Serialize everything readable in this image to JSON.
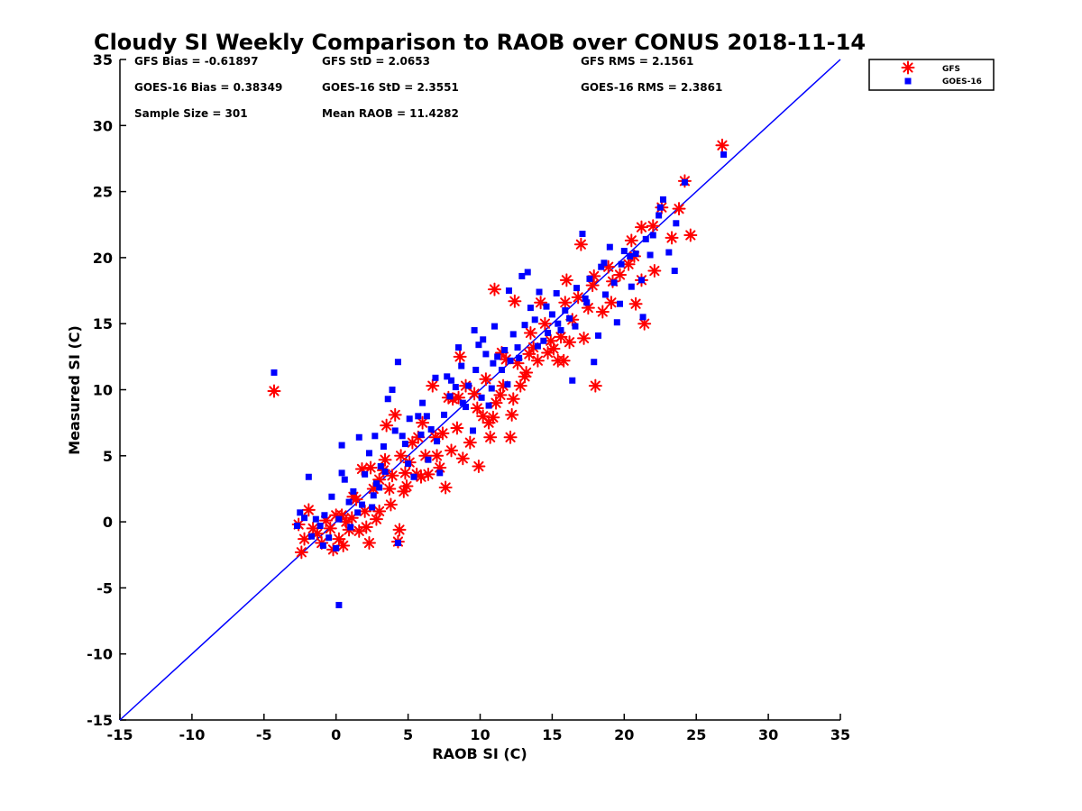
{
  "chart_data": {
    "type": "scatter",
    "title": "Cloudy SI Weekly Comparison to RAOB over CONUS 2018-11-14",
    "xlabel": "RAOB SI (C)",
    "ylabel": "Measured SI (C)",
    "xlim": [
      -15,
      35
    ],
    "ylim": [
      -15,
      35
    ],
    "x_ticks": [
      "-15",
      "-10",
      "-5",
      "0",
      "5",
      "10",
      "15",
      "20",
      "25",
      "30",
      "35"
    ],
    "y_ticks": [
      "-15",
      "-10",
      "-5",
      "0",
      "5",
      "10",
      "15",
      "20",
      "25",
      "30",
      "35"
    ],
    "grid": false,
    "legend_position": "top-right, outside plot",
    "reference_line": {
      "from": [
        -15,
        -15
      ],
      "to": [
        35,
        35
      ],
      "color": "#0000ff"
    },
    "stats": {
      "gfs_bias": "GFS Bias = -0.61897",
      "gfs_std": "GFS StD = 2.0653",
      "gfs_rms": "GFS RMS = 2.1561",
      "goes_bias": "GOES-16 Bias = 0.38349",
      "goes_std": "GOES-16 StD = 2.3551",
      "goes_rms": "GOES-16 RMS = 2.3861",
      "sample_size": "Sample Size = 301",
      "mean_raob": "Mean RAOB = 11.4282"
    },
    "series": [
      {
        "name": "GFS",
        "marker": "asterisk",
        "color": "#ff0000",
        "points": [
          [
            -4.3,
            9.9
          ],
          [
            26.8,
            28.5
          ],
          [
            24.2,
            25.8
          ],
          [
            24.6,
            21.7
          ],
          [
            23.8,
            23.7
          ],
          [
            22.6,
            23.8
          ],
          [
            23.3,
            21.5
          ],
          [
            22.0,
            22.4
          ],
          [
            21.2,
            22.3
          ],
          [
            22.1,
            19.0
          ],
          [
            21.2,
            18.3
          ],
          [
            21.4,
            15.0
          ],
          [
            20.7,
            20.1
          ],
          [
            20.3,
            19.5
          ],
          [
            20.8,
            16.5
          ],
          [
            19.7,
            18.7
          ],
          [
            19.2,
            18.2
          ],
          [
            19.1,
            16.6
          ],
          [
            18.5,
            15.9
          ],
          [
            17.9,
            18.6
          ],
          [
            17.8,
            17.9
          ],
          [
            18.0,
            10.3
          ],
          [
            17.0,
            21.0
          ],
          [
            17.2,
            13.9
          ],
          [
            17.5,
            16.2
          ],
          [
            16.8,
            17.0
          ],
          [
            16.4,
            15.3
          ],
          [
            16.2,
            13.6
          ],
          [
            16.0,
            18.3
          ],
          [
            15.8,
            12.2
          ],
          [
            15.4,
            12.2
          ],
          [
            15.9,
            16.6
          ],
          [
            14.9,
            13.7
          ],
          [
            14.7,
            12.8
          ],
          [
            14.5,
            15.0
          ],
          [
            14.0,
            12.2
          ],
          [
            14.2,
            16.6
          ],
          [
            13.5,
            14.3
          ],
          [
            13.4,
            12.7
          ],
          [
            13.1,
            11.0
          ],
          [
            12.8,
            10.3
          ],
          [
            12.6,
            12.0
          ],
          [
            12.2,
            8.1
          ],
          [
            12.3,
            9.3
          ],
          [
            12.1,
            6.4
          ],
          [
            12.4,
            16.7
          ],
          [
            11.8,
            12.3
          ],
          [
            11.6,
            10.3
          ],
          [
            11.4,
            9.6
          ],
          [
            11.1,
            9.0
          ],
          [
            11.0,
            17.6
          ],
          [
            10.7,
            6.4
          ],
          [
            10.6,
            7.5
          ],
          [
            10.4,
            10.8
          ],
          [
            10.2,
            8.0
          ],
          [
            9.9,
            4.2
          ],
          [
            9.6,
            9.7
          ],
          [
            9.3,
            6.0
          ],
          [
            9.0,
            10.3
          ],
          [
            8.8,
            4.8
          ],
          [
            8.6,
            12.5
          ],
          [
            8.5,
            9.4
          ],
          [
            8.1,
            9.3
          ],
          [
            8.0,
            5.4
          ],
          [
            7.8,
            9.4
          ],
          [
            7.6,
            2.6
          ],
          [
            7.2,
            4.1
          ],
          [
            7.0,
            5.0
          ],
          [
            6.9,
            6.4
          ],
          [
            6.7,
            10.3
          ],
          [
            6.2,
            5.0
          ],
          [
            6.0,
            7.5
          ],
          [
            5.7,
            6.4
          ],
          [
            5.6,
            3.6
          ],
          [
            5.3,
            6.0
          ],
          [
            5.1,
            4.5
          ],
          [
            4.9,
            2.7
          ],
          [
            4.8,
            3.7
          ],
          [
            4.5,
            5.0
          ],
          [
            4.4,
            -0.6
          ],
          [
            4.3,
            -1.5
          ],
          [
            4.1,
            8.1
          ],
          [
            3.9,
            3.5
          ],
          [
            3.7,
            2.5
          ],
          [
            3.5,
            7.3
          ],
          [
            3.4,
            4.7
          ],
          [
            3.3,
            3.9
          ],
          [
            3.0,
            3.2
          ],
          [
            2.8,
            0.2
          ],
          [
            2.6,
            2.5
          ],
          [
            2.4,
            4.1
          ],
          [
            2.3,
            -1.6
          ],
          [
            2.0,
            0.8
          ],
          [
            1.8,
            4.0
          ],
          [
            1.6,
            -0.7
          ],
          [
            1.4,
            1.7
          ],
          [
            1.1,
            0.3
          ],
          [
            0.9,
            -0.6
          ],
          [
            0.7,
            0.0
          ],
          [
            0.4,
            0.5
          ],
          [
            0.2,
            -1.3
          ],
          [
            0.0,
            0.5
          ],
          [
            -0.2,
            -2.1
          ],
          [
            -0.4,
            -0.5
          ],
          [
            -0.7,
            0.1
          ],
          [
            -1.0,
            -1.6
          ],
          [
            -1.3,
            -0.9
          ],
          [
            -1.6,
            -0.5
          ],
          [
            -1.9,
            0.9
          ],
          [
            -2.2,
            -1.3
          ],
          [
            -2.4,
            -2.3
          ],
          [
            -2.6,
            -0.2
          ],
          [
            3.0,
            0.8
          ],
          [
            4.7,
            2.3
          ],
          [
            6.4,
            3.6
          ],
          [
            8.4,
            7.1
          ],
          [
            10.9,
            7.9
          ],
          [
            13.7,
            13.2
          ],
          [
            15.1,
            13.1
          ],
          [
            18.9,
            19.3
          ],
          [
            20.5,
            21.3
          ],
          [
            15.6,
            14.0
          ],
          [
            13.2,
            11.3
          ],
          [
            11.5,
            12.8
          ],
          [
            9.8,
            8.6
          ],
          [
            7.4,
            6.7
          ],
          [
            5.9,
            3.4
          ],
          [
            3.8,
            1.3
          ],
          [
            1.2,
            1.9
          ],
          [
            2.1,
            -0.4
          ],
          [
            0.5,
            -1.8
          ]
        ]
      },
      {
        "name": "GOES-16",
        "marker": "square",
        "color": "#0000ff",
        "points": [
          [
            -4.3,
            11.3
          ],
          [
            26.9,
            27.8
          ],
          [
            24.2,
            25.7
          ],
          [
            23.6,
            22.6
          ],
          [
            23.1,
            20.4
          ],
          [
            22.7,
            24.4
          ],
          [
            22.4,
            23.2
          ],
          [
            23.5,
            19.0
          ],
          [
            22.0,
            21.7
          ],
          [
            21.5,
            21.4
          ],
          [
            21.2,
            18.3
          ],
          [
            21.3,
            15.5
          ],
          [
            20.8,
            20.3
          ],
          [
            20.5,
            17.8
          ],
          [
            20.0,
            20.5
          ],
          [
            19.8,
            19.5
          ],
          [
            19.5,
            15.1
          ],
          [
            19.3,
            18.1
          ],
          [
            19.0,
            20.8
          ],
          [
            18.7,
            17.2
          ],
          [
            18.4,
            19.3
          ],
          [
            18.2,
            14.1
          ],
          [
            17.9,
            12.1
          ],
          [
            17.6,
            18.4
          ],
          [
            17.3,
            16.9
          ],
          [
            17.1,
            21.8
          ],
          [
            16.7,
            17.7
          ],
          [
            16.4,
            10.7
          ],
          [
            16.2,
            15.4
          ],
          [
            15.9,
            16.0
          ],
          [
            15.6,
            14.5
          ],
          [
            15.3,
            17.3
          ],
          [
            15.0,
            15.7
          ],
          [
            14.7,
            14.3
          ],
          [
            14.4,
            13.7
          ],
          [
            14.1,
            17.4
          ],
          [
            13.8,
            15.3
          ],
          [
            13.5,
            16.2
          ],
          [
            13.3,
            18.9
          ],
          [
            12.9,
            18.6
          ],
          [
            12.6,
            13.2
          ],
          [
            12.3,
            14.2
          ],
          [
            12.0,
            17.5
          ],
          [
            11.7,
            13.0
          ],
          [
            11.5,
            11.5
          ],
          [
            11.2,
            12.5
          ],
          [
            11.0,
            14.8
          ],
          [
            10.8,
            10.1
          ],
          [
            10.6,
            8.8
          ],
          [
            10.4,
            12.7
          ],
          [
            10.2,
            13.8
          ],
          [
            9.9,
            13.4
          ],
          [
            9.7,
            11.5
          ],
          [
            9.5,
            6.9
          ],
          [
            9.2,
            10.3
          ],
          [
            9.0,
            8.7
          ],
          [
            8.7,
            11.8
          ],
          [
            8.5,
            13.2
          ],
          [
            8.3,
            10.2
          ],
          [
            8.0,
            10.7
          ],
          [
            7.7,
            11.0
          ],
          [
            7.5,
            8.1
          ],
          [
            7.2,
            3.7
          ],
          [
            6.9,
            10.9
          ],
          [
            6.6,
            7.0
          ],
          [
            6.3,
            8.0
          ],
          [
            6.0,
            9.0
          ],
          [
            5.7,
            8.0
          ],
          [
            5.4,
            3.4
          ],
          [
            5.1,
            7.8
          ],
          [
            4.8,
            5.9
          ],
          [
            4.6,
            6.5
          ],
          [
            4.3,
            12.1
          ],
          [
            4.1,
            6.9
          ],
          [
            3.9,
            10.0
          ],
          [
            3.6,
            9.3
          ],
          [
            3.4,
            3.8
          ],
          [
            3.1,
            4.2
          ],
          [
            2.8,
            2.9
          ],
          [
            2.6,
            2.0
          ],
          [
            2.3,
            5.2
          ],
          [
            2.0,
            3.6
          ],
          [
            1.8,
            1.3
          ],
          [
            1.5,
            0.7
          ],
          [
            1.2,
            2.3
          ],
          [
            0.9,
            1.5
          ],
          [
            0.6,
            3.2
          ],
          [
            0.4,
            3.7
          ],
          [
            0.2,
            0.2
          ],
          [
            0.0,
            -2.0
          ],
          [
            -0.3,
            1.9
          ],
          [
            -0.5,
            -1.2
          ],
          [
            -0.8,
            0.5
          ],
          [
            -1.1,
            -0.3
          ],
          [
            -1.4,
            0.2
          ],
          [
            -1.7,
            -1.1
          ],
          [
            -1.9,
            3.4
          ],
          [
            -2.2,
            0.3
          ],
          [
            -2.5,
            0.7
          ],
          [
            -2.7,
            -0.3
          ],
          [
            0.2,
            -6.3
          ],
          [
            4.3,
            -1.6
          ],
          [
            0.4,
            5.8
          ],
          [
            1.6,
            6.4
          ],
          [
            2.7,
            6.5
          ],
          [
            3.3,
            5.7
          ],
          [
            5.9,
            6.6
          ],
          [
            6.4,
            4.7
          ],
          [
            7.9,
            9.5
          ],
          [
            8.8,
            9.0
          ],
          [
            9.6,
            14.5
          ],
          [
            10.9,
            12.0
          ],
          [
            11.9,
            10.4
          ],
          [
            12.7,
            12.4
          ],
          [
            13.1,
            14.9
          ],
          [
            14.6,
            16.3
          ],
          [
            15.4,
            15.0
          ],
          [
            16.6,
            14.8
          ],
          [
            17.4,
            16.6
          ],
          [
            18.6,
            19.6
          ],
          [
            19.7,
            16.5
          ],
          [
            20.4,
            20.1
          ],
          [
            21.8,
            20.2
          ],
          [
            22.5,
            23.8
          ],
          [
            14.0,
            13.3
          ],
          [
            12.1,
            12.2
          ],
          [
            10.1,
            9.4
          ],
          [
            7.0,
            6.1
          ],
          [
            5.0,
            4.4
          ],
          [
            3.0,
            2.6
          ],
          [
            1.0,
            -0.4
          ],
          [
            -0.9,
            -1.8
          ],
          [
            2.5,
            1.1
          ]
        ]
      }
    ]
  }
}
